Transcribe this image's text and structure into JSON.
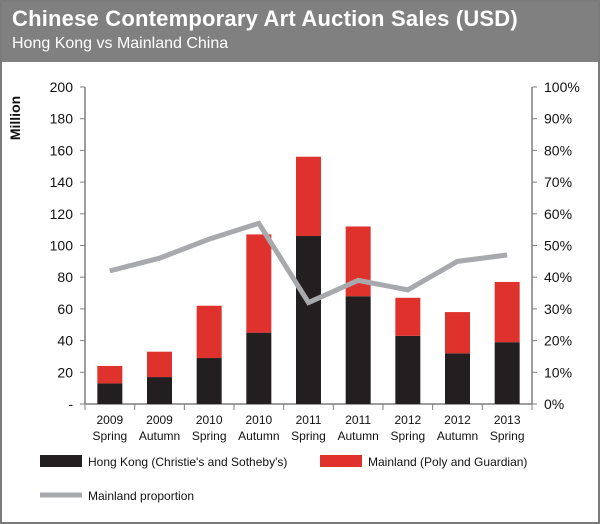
{
  "header": {
    "title": "Chinese Contemporary Art Auction Sales (USD)",
    "subtitle": "Hong Kong vs Mainland China"
  },
  "chart_data": {
    "type": "bar",
    "stacked": true,
    "title": "Chinese Contemporary Art Auction Sales (USD)",
    "subtitle": "Hong Kong vs Mainland China",
    "ylabel": "Million",
    "ylim": [
      0,
      200
    ],
    "y_ticks": [
      "-",
      "20",
      "40",
      "60",
      "80",
      "100",
      "120",
      "140",
      "160",
      "180",
      "200"
    ],
    "y2lim": [
      0,
      1
    ],
    "y2_ticks": [
      "0%",
      "10%",
      "20%",
      "30%",
      "40%",
      "50%",
      "60%",
      "70%",
      "80%",
      "90%",
      "100%"
    ],
    "categories": [
      [
        "2009",
        "Spring"
      ],
      [
        "2009",
        "Autumn"
      ],
      [
        "2010",
        "Spring"
      ],
      [
        "2010",
        "Autumn"
      ],
      [
        "2011",
        "Spring"
      ],
      [
        "2011",
        "Autumn"
      ],
      [
        "2012",
        "Spring"
      ],
      [
        "2012",
        "Autumn"
      ],
      [
        "2013",
        "Spring"
      ]
    ],
    "series": [
      {
        "name": "Hong Kong (Christie's and Sotheby's)",
        "type": "bar",
        "color": "#231f20",
        "values": [
          13,
          17,
          29,
          45,
          106,
          68,
          43,
          32,
          39
        ]
      },
      {
        "name": "Mainland (Poly and Guardian)",
        "type": "bar",
        "color": "#e0322d",
        "values": [
          11,
          16,
          33,
          62,
          50,
          44,
          24,
          26,
          38
        ]
      },
      {
        "name": "Mainland proportion",
        "type": "line",
        "axis": "right",
        "color": "#a7a9ac",
        "values": [
          0.42,
          0.46,
          0.52,
          0.57,
          0.32,
          0.39,
          0.36,
          0.45,
          0.47
        ]
      }
    ],
    "grid": false,
    "legend": "bottom"
  }
}
